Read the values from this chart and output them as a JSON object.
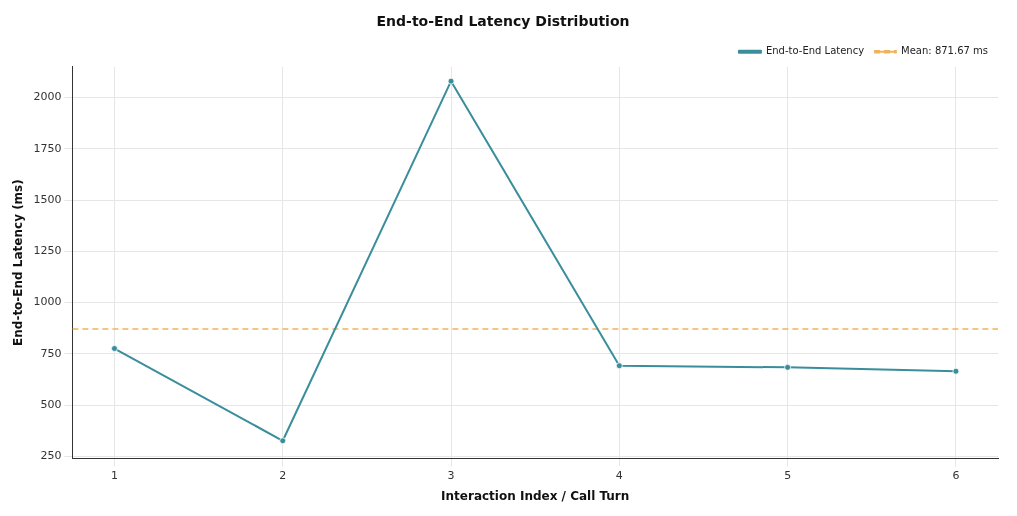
{
  "chart_data": {
    "type": "line",
    "title": "End-to-End Latency Distribution",
    "xlabel": "Interaction Index / Call Turn",
    "ylabel": "End-to-End Latency (ms)",
    "x": [
      1,
      2,
      3,
      4,
      5,
      6
    ],
    "series": [
      {
        "name": "End-to-End Latency",
        "color": "#3a8e9c",
        "values": [
          776,
          326,
          2080,
          692,
          684,
          665
        ]
      }
    ],
    "ref_lines": [
      {
        "axis": "y",
        "value": 871.67,
        "label": "Mean: 871.67 ms",
        "color": "#f0b35a",
        "line_style": "dashed"
      }
    ],
    "xlim": [
      0.75,
      6.25
    ],
    "xticks": [
      1,
      2,
      3,
      4,
      5,
      6
    ],
    "ylim": [
      240,
      2150
    ],
    "yticks": [
      250,
      500,
      750,
      1000,
      1250,
      1500,
      1750,
      2000
    ],
    "grid": true,
    "legend": "top right",
    "marker": "circle",
    "line_style": "solid"
  }
}
